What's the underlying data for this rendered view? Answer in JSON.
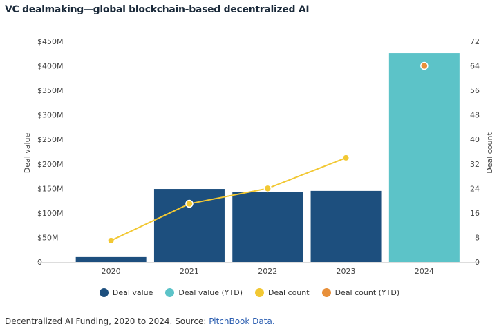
{
  "chart_data": {
    "type": "bar",
    "title": "VC dealmaking—global blockchain-based decentralized AI",
    "categories": [
      "2020",
      "2021",
      "2022",
      "2023",
      "2024"
    ],
    "series": [
      {
        "name": "Deal value",
        "kind": "bar",
        "axis": "left",
        "color": "#1d4f7e",
        "values": [
          10,
          149,
          143,
          145,
          null
        ]
      },
      {
        "name": "Deal value (YTD)",
        "kind": "bar",
        "axis": "left",
        "color": "#5cc3c8",
        "values": [
          null,
          null,
          null,
          null,
          426
        ]
      },
      {
        "name": "Deal count",
        "kind": "line",
        "axis": "right",
        "color": "#f2c833",
        "values": [
          7,
          19,
          24,
          34,
          null
        ]
      },
      {
        "name": "Deal count (YTD)",
        "kind": "line",
        "axis": "right",
        "color": "#e8903a",
        "values": [
          null,
          null,
          null,
          null,
          64
        ]
      }
    ],
    "ylabel": "Deal value",
    "ylim": [
      0,
      450
    ],
    "yticks": [
      "0",
      "$50M",
      "$100M",
      "$150M",
      "$200M",
      "$250M",
      "$300M",
      "$350M",
      "$400M",
      "$450M"
    ],
    "y2label": "Deal count",
    "y2lim": [
      0,
      72
    ],
    "y2ticks": [
      "0",
      "8",
      "16",
      "24",
      "32",
      "40",
      "48",
      "56",
      "64",
      "72"
    ],
    "legend_position": "bottom"
  },
  "caption": {
    "text": "Decentralized AI Funding, 2020 to 2024. Source: ",
    "link": "PitchBook Data."
  }
}
